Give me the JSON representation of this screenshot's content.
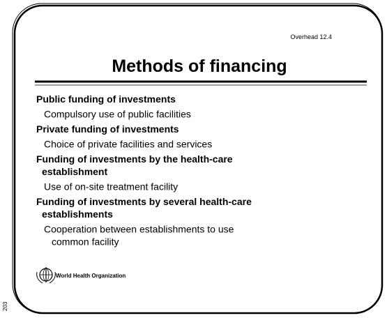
{
  "header": {
    "overhead": "Overhead 12.4",
    "title": "Methods of financing"
  },
  "items": [
    {
      "heading": [
        "Public funding of investments"
      ],
      "detail": [
        "Compulsory use of public facilities"
      ]
    },
    {
      "heading": [
        "Private funding of investments"
      ],
      "detail": [
        "Choice of private facilities and services"
      ]
    },
    {
      "heading": [
        "Funding of investments by the health-care",
        "establishment"
      ],
      "detail": [
        "Use of on-site treatment facility"
      ]
    },
    {
      "heading": [
        "Funding of investments by several health-care",
        "establishments"
      ],
      "detail": [
        "Cooperation between establishments to use",
        "common facility"
      ]
    }
  ],
  "footer": {
    "organization": "World Health Organization",
    "page": "203"
  }
}
